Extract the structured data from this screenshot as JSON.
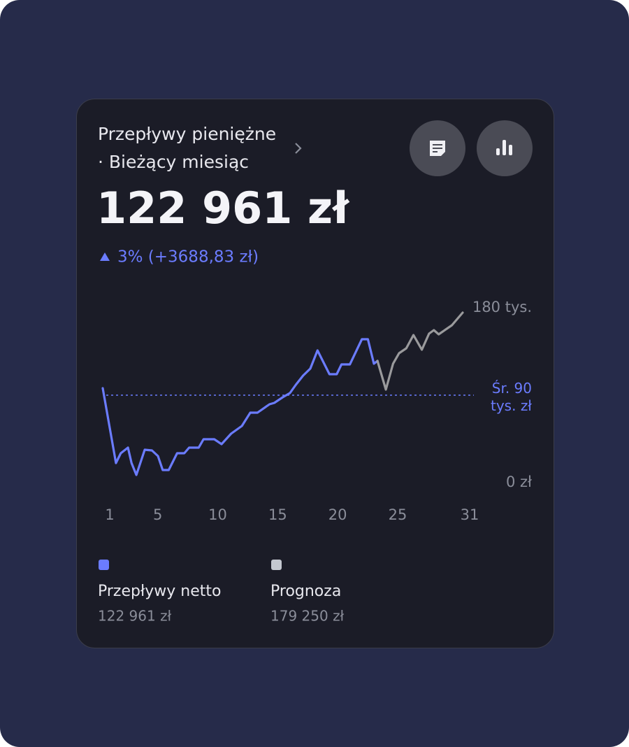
{
  "header": {
    "title": "Przepływy pieniężne",
    "subtitle": "· Bieżący miesiąc",
    "amount": "122 961 zł",
    "change": "3% (+3688,83 zł)"
  },
  "chart_data": {
    "type": "line",
    "xlim": [
      1,
      31
    ],
    "xticks": [
      1,
      5,
      10,
      15,
      20,
      25,
      31
    ],
    "ylim": [
      0,
      180000
    ],
    "yticks": [
      {
        "value": 0,
        "label": "0 zł"
      },
      {
        "value": 180000,
        "label": "180 tys."
      }
    ],
    "average": {
      "value": 90000,
      "label": "Śr. 90 tys. zł"
    },
    "series": [
      {
        "name": "Przepływy netto",
        "total": "122 961 zł",
        "color": "#6b7cff",
        "x": [
          1.0,
          2.1,
          2.5,
          3.1,
          3.4,
          3.8,
          4.5,
          5.1,
          5.6,
          6.0,
          6.5,
          7.2,
          7.8,
          8.2,
          9.0,
          9.4,
          10.3,
          10.9,
          11.7,
          12.6,
          13.3,
          13.9,
          14.9,
          15.3,
          16.0,
          16.6,
          17.1,
          17.7,
          18.3,
          18.9,
          19.9,
          20.5,
          20.9,
          21.6,
          22.6,
          23.1,
          23.6,
          23.9
        ],
        "values": [
          97200,
          20160,
          30240,
          36000,
          20160,
          7920,
          33840,
          33120,
          27360,
          12960,
          12960,
          30240,
          30240,
          36000,
          36000,
          44640,
          44640,
          39600,
          50400,
          58320,
          72000,
          72000,
          80640,
          82080,
          87840,
          92160,
          100800,
          110160,
          117360,
          136080,
          111600,
          111600,
          121680,
          121680,
          147600,
          147600,
          122400,
          125280
        ]
      },
      {
        "name": "Prognoza",
        "total": "179 250 zł",
        "color": "#9a9a9c",
        "legend_color": "#c4c8d0",
        "x": [
          23.9,
          24.6,
          25.2,
          25.7,
          26.3,
          26.9,
          27.6,
          28.2,
          28.6,
          29.0,
          30.1,
          31.0
        ],
        "values": [
          125280,
          95760,
          122400,
          133200,
          138240,
          151920,
          136800,
          153360,
          156960,
          152640,
          162000,
          174960
        ]
      }
    ]
  }
}
